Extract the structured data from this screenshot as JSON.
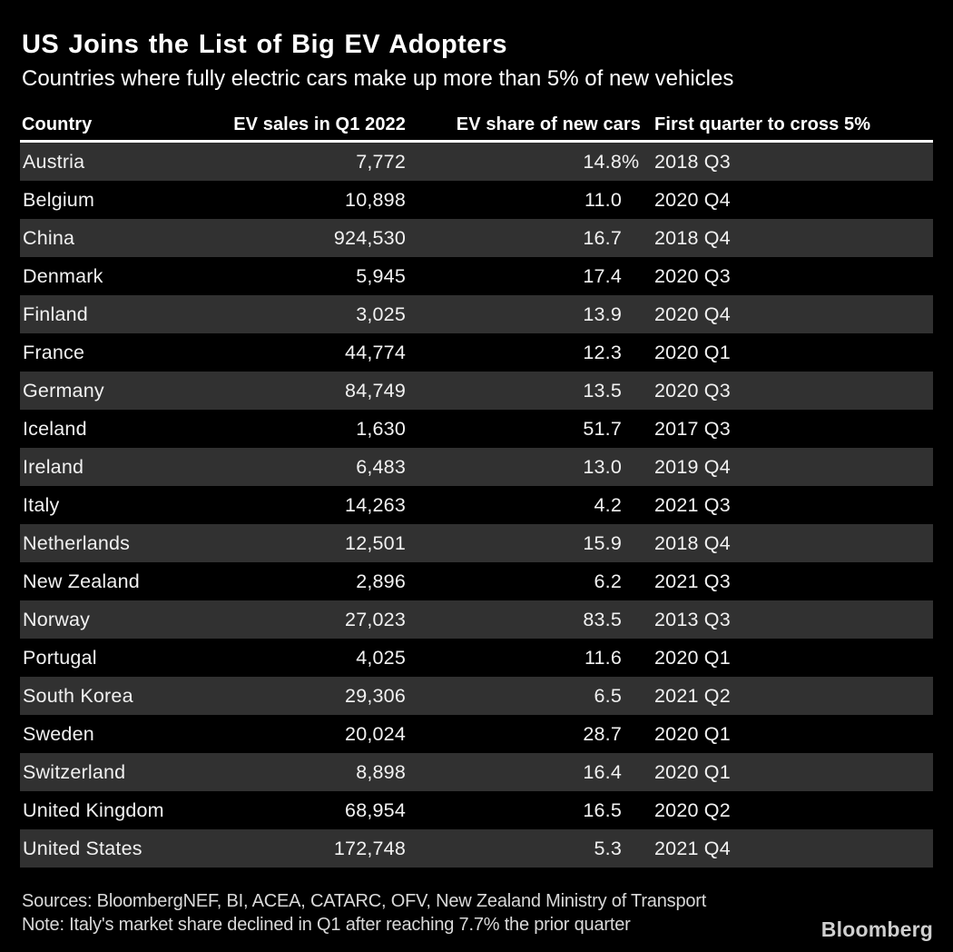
{
  "chart_data": {
    "type": "table",
    "title": "US Joins the List of Big EV Adopters",
    "subtitle": "Countries where fully electric cars make up more than 5% of new vehicles",
    "columns": [
      "Country",
      "EV sales in Q1 2022",
      "EV share of new cars",
      "First quarter to cross 5%"
    ],
    "rows": [
      {
        "country": "Austria",
        "ev_sales_q1_2022": "7,772",
        "ev_share_value": "14.8",
        "ev_share_unit": "%",
        "first_quarter_cross_5pct": "2018 Q3"
      },
      {
        "country": "Belgium",
        "ev_sales_q1_2022": "10,898",
        "ev_share_value": "11.0",
        "ev_share_unit": "",
        "first_quarter_cross_5pct": "2020 Q4"
      },
      {
        "country": "China",
        "ev_sales_q1_2022": "924,530",
        "ev_share_value": "16.7",
        "ev_share_unit": "",
        "first_quarter_cross_5pct": "2018 Q4"
      },
      {
        "country": "Denmark",
        "ev_sales_q1_2022": "5,945",
        "ev_share_value": "17.4",
        "ev_share_unit": "",
        "first_quarter_cross_5pct": "2020 Q3"
      },
      {
        "country": "Finland",
        "ev_sales_q1_2022": "3,025",
        "ev_share_value": "13.9",
        "ev_share_unit": "",
        "first_quarter_cross_5pct": "2020 Q4"
      },
      {
        "country": "France",
        "ev_sales_q1_2022": "44,774",
        "ev_share_value": "12.3",
        "ev_share_unit": "",
        "first_quarter_cross_5pct": "2020 Q1"
      },
      {
        "country": "Germany",
        "ev_sales_q1_2022": "84,749",
        "ev_share_value": "13.5",
        "ev_share_unit": "",
        "first_quarter_cross_5pct": "2020 Q3"
      },
      {
        "country": "Iceland",
        "ev_sales_q1_2022": "1,630",
        "ev_share_value": "51.7",
        "ev_share_unit": "",
        "first_quarter_cross_5pct": "2017 Q3"
      },
      {
        "country": "Ireland",
        "ev_sales_q1_2022": "6,483",
        "ev_share_value": "13.0",
        "ev_share_unit": "",
        "first_quarter_cross_5pct": "2019 Q4"
      },
      {
        "country": "Italy",
        "ev_sales_q1_2022": "14,263",
        "ev_share_value": "4.2",
        "ev_share_unit": "",
        "first_quarter_cross_5pct": "2021 Q3"
      },
      {
        "country": "Netherlands",
        "ev_sales_q1_2022": "12,501",
        "ev_share_value": "15.9",
        "ev_share_unit": "",
        "first_quarter_cross_5pct": "2018 Q4"
      },
      {
        "country": "New Zealand",
        "ev_sales_q1_2022": "2,896",
        "ev_share_value": "6.2",
        "ev_share_unit": "",
        "first_quarter_cross_5pct": "2021 Q3"
      },
      {
        "country": "Norway",
        "ev_sales_q1_2022": "27,023",
        "ev_share_value": "83.5",
        "ev_share_unit": "",
        "first_quarter_cross_5pct": "2013 Q3"
      },
      {
        "country": "Portugal",
        "ev_sales_q1_2022": "4,025",
        "ev_share_value": "11.6",
        "ev_share_unit": "",
        "first_quarter_cross_5pct": "2020 Q1"
      },
      {
        "country": "South Korea",
        "ev_sales_q1_2022": "29,306",
        "ev_share_value": "6.5",
        "ev_share_unit": "",
        "first_quarter_cross_5pct": "2021 Q2"
      },
      {
        "country": "Sweden",
        "ev_sales_q1_2022": "20,024",
        "ev_share_value": "28.7",
        "ev_share_unit": "",
        "first_quarter_cross_5pct": "2020 Q1"
      },
      {
        "country": "Switzerland",
        "ev_sales_q1_2022": "8,898",
        "ev_share_value": "16.4",
        "ev_share_unit": "",
        "first_quarter_cross_5pct": "2020 Q1"
      },
      {
        "country": "United Kingdom",
        "ev_sales_q1_2022": "68,954",
        "ev_share_value": "16.5",
        "ev_share_unit": "",
        "first_quarter_cross_5pct": "2020 Q2"
      },
      {
        "country": "United States",
        "ev_sales_q1_2022": "172,748",
        "ev_share_value": "5.3",
        "ev_share_unit": "",
        "first_quarter_cross_5pct": "2021 Q4"
      }
    ]
  },
  "footer": {
    "sources": "Sources: BloombergNEF, BI, ACEA, CATARC, OFV, New Zealand Ministry of Transport",
    "note": "Note: Italy's market share declined in Q1 after reaching 7.7% the prior quarter",
    "brand": "Bloomberg"
  },
  "colors": {
    "background": "#000000",
    "row_stripe": "#313131",
    "rule": "#ffffff",
    "text_primary": "#ffffff",
    "text_rows": "#f1f1f1",
    "text_footer": "#d9d9d9",
    "brand_logo": "#cfcfcf"
  }
}
